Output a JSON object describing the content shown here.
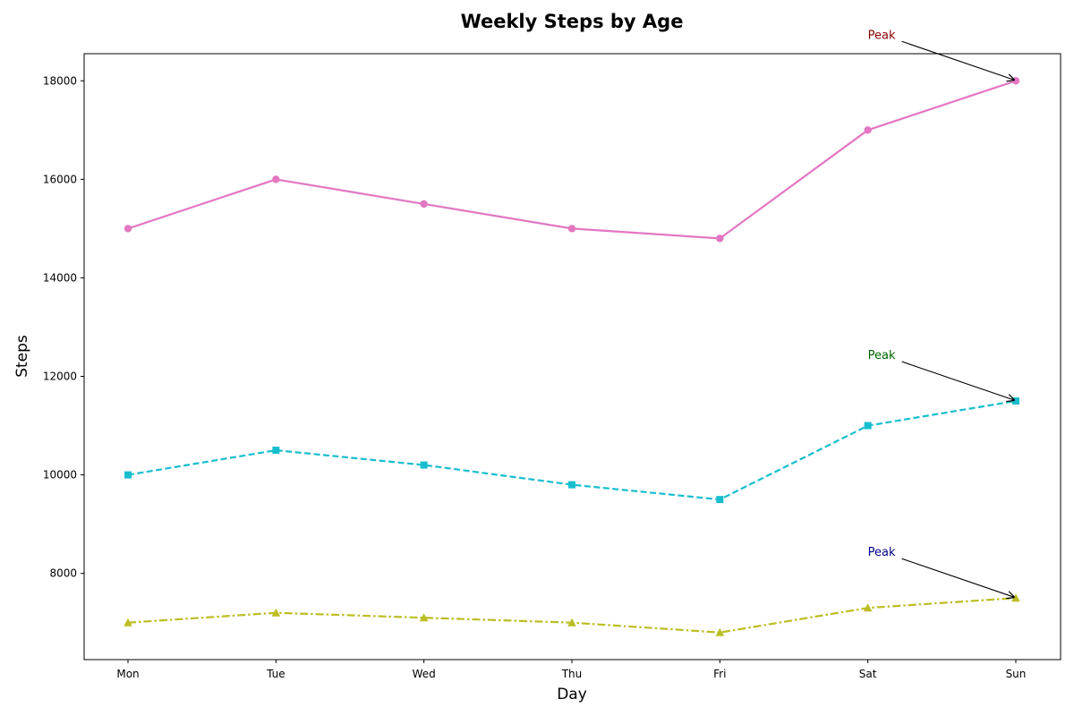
{
  "chart_data": {
    "type": "line",
    "title": "Weekly Steps by Age",
    "xlabel": "Day",
    "ylabel": "Steps",
    "categories": [
      "Mon",
      "Tue",
      "Wed",
      "Thu",
      "Fri",
      "Sat",
      "Sun"
    ],
    "ylim": [
      6250,
      18550
    ],
    "yticks": [
      8000,
      10000,
      12000,
      14000,
      16000,
      18000
    ],
    "grid": false,
    "series": [
      {
        "values": [
          15000,
          16000,
          15500,
          15000,
          14800,
          17000,
          18000
        ],
        "color": "#e377c2",
        "line_style": "solid",
        "marker": "circle",
        "annotation": {
          "text": "Peak",
          "color": "#8b0000",
          "target_index": 6
        }
      },
      {
        "values": [
          10000,
          10500,
          10200,
          9800,
          9500,
          11000,
          11500
        ],
        "color": "#17becf",
        "line_style": "dashed",
        "marker": "square",
        "annotation": {
          "text": "Peak",
          "color": "#006400",
          "target_index": 6
        }
      },
      {
        "values": [
          7000,
          7200,
          7100,
          7000,
          6800,
          7300,
          7500
        ],
        "color": "#bcbd22",
        "line_style": "dashdot",
        "marker": "triangle",
        "annotation": {
          "text": "Peak",
          "color": "#00008b",
          "target_index": 6
        }
      }
    ]
  }
}
